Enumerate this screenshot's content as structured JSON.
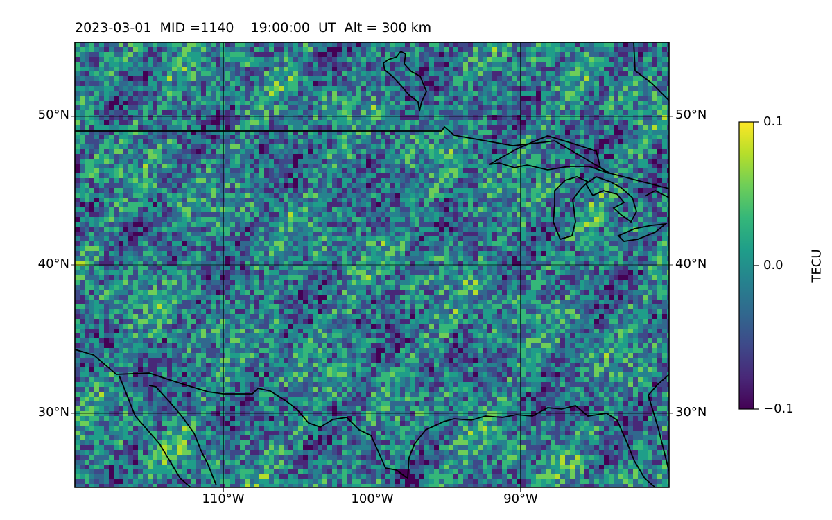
{
  "title": "2023-03-01  MID =1140    19:00:00  UT  Alt = 300 km",
  "chart_data": {
    "type": "heatmap",
    "map_extent": {
      "lon_min": -120,
      "lon_max": -80,
      "lat_min": 25,
      "lat_max": 55
    },
    "grid": true,
    "colormap": "viridis",
    "lat_ticks": [
      {
        "value": 50,
        "label": "50°N"
      },
      {
        "value": 40,
        "label": "40°N"
      },
      {
        "value": 30,
        "label": "30°N"
      }
    ],
    "lon_ticks": [
      {
        "value": -110,
        "label": "110°W"
      },
      {
        "value": -100,
        "label": "100°W"
      },
      {
        "value": -90,
        "label": "90°W"
      }
    ],
    "colorbar": {
      "label": "TECU",
      "min": -0.1,
      "max": 0.1,
      "ticks": [
        {
          "value": 0.1,
          "label": "0.1"
        },
        {
          "value": 0.0,
          "label": "0.0"
        },
        {
          "value": -0.1,
          "label": "−0.1"
        }
      ],
      "colors": [
        "#440154",
        "#482878",
        "#3e4989",
        "#31688e",
        "#26828e",
        "#1f9e89",
        "#35b779",
        "#6ece58",
        "#b5de2b",
        "#fde725"
      ]
    },
    "coastline_color": "#000000"
  }
}
